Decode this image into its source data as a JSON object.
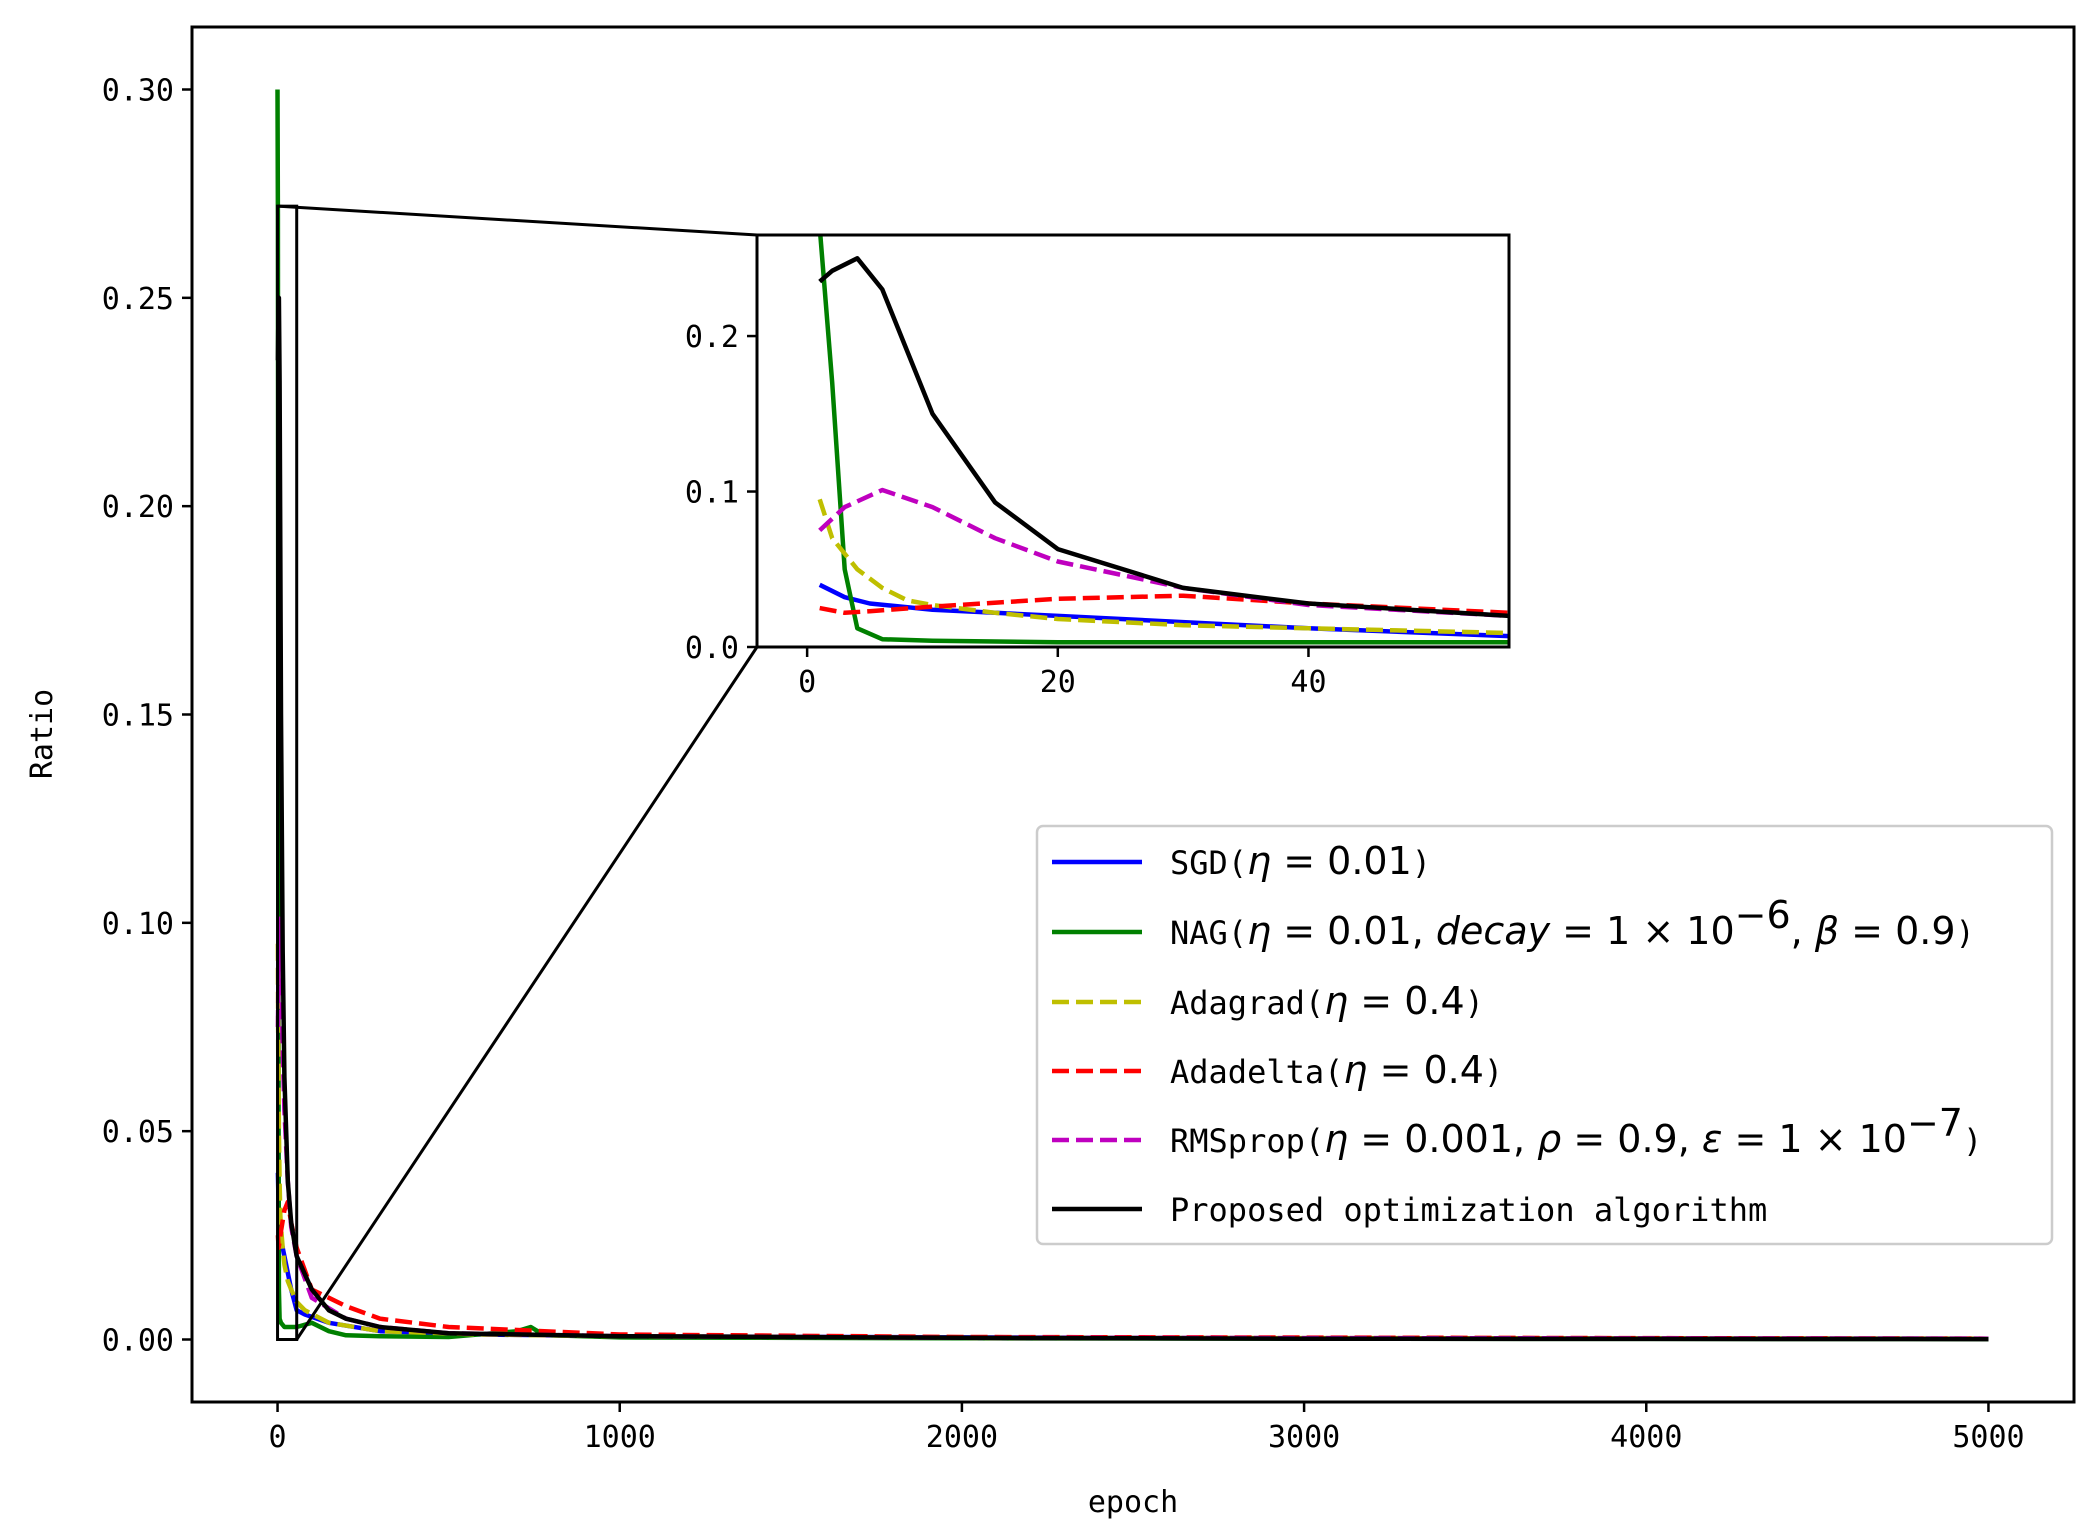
{
  "chart_data": {
    "type": "line",
    "title": "",
    "xlabel": "epoch",
    "ylabel": "Ratio",
    "xlim": [
      -250,
      5250
    ],
    "ylim": [
      -0.015,
      0.315
    ],
    "xticks": [
      0,
      1000,
      2000,
      3000,
      4000,
      5000
    ],
    "xtick_labels": [
      "0",
      "1000",
      "2000",
      "3000",
      "4000",
      "5000"
    ],
    "yticks": [
      0.0,
      0.05,
      0.1,
      0.15,
      0.2,
      0.25,
      0.3
    ],
    "ytick_labels": [
      "0.00",
      "0.05",
      "0.10",
      "0.15",
      "0.20",
      "0.25",
      "0.30"
    ],
    "grid": false,
    "legend_position": "center-right",
    "series": [
      {
        "name": "SGD(η = 0.01)",
        "color": "#0000ff",
        "style": "solid",
        "x": [
          1,
          3,
          5,
          10,
          15,
          20,
          30,
          40,
          56,
          80,
          150,
          300,
          600,
          1000,
          2000,
          3000,
          5000
        ],
        "y": [
          0.04,
          0.032,
          0.028,
          0.024,
          0.022,
          0.02,
          0.016,
          0.012,
          0.007,
          0.006,
          0.004,
          0.002,
          0.0012,
          0.0008,
          0.0005,
          0.0003,
          0.0002
        ]
      },
      {
        "name": "NAG(η = 0.01,  decay = 1 × 10⁻⁶,  β = 0.9)",
        "color": "#008000",
        "style": "solid",
        "x": [
          0,
          1,
          2,
          3,
          4,
          6,
          10,
          20,
          56,
          100,
          150,
          200,
          300,
          500,
          700,
          740,
          760,
          800,
          1000,
          2000,
          3000,
          5000
        ],
        "y": [
          0.3,
          0.27,
          0.17,
          0.05,
          0.012,
          0.005,
          0.004,
          0.003,
          0.003,
          0.004,
          0.002,
          0.001,
          0.0008,
          0.0006,
          0.002,
          0.003,
          0.002,
          0.001,
          0.0005,
          0.0003,
          0.0002,
          0.0001
        ]
      },
      {
        "name": "Adagrad(η = 0.4)",
        "color": "#bfbf00",
        "style": "dashed",
        "x": [
          1,
          2,
          4,
          6,
          8,
          10,
          15,
          20,
          30,
          40,
          56,
          80,
          150,
          300,
          600,
          1000,
          2000,
          5000
        ],
        "y": [
          0.095,
          0.07,
          0.05,
          0.038,
          0.03,
          0.027,
          0.022,
          0.018,
          0.014,
          0.012,
          0.009,
          0.007,
          0.004,
          0.002,
          0.0012,
          0.0008,
          0.0004,
          0.0002
        ]
      },
      {
        "name": "Adadelta(η = 0.4)",
        "color": "#ff0000",
        "style": "dashed",
        "x": [
          1,
          3,
          5,
          10,
          20,
          30,
          40,
          56,
          100,
          150,
          200,
          300,
          500,
          1000,
          2000,
          5000
        ],
        "y": [
          0.025,
          0.022,
          0.023,
          0.026,
          0.031,
          0.033,
          0.028,
          0.022,
          0.012,
          0.01,
          0.008,
          0.005,
          0.003,
          0.0012,
          0.0006,
          0.0002
        ]
      },
      {
        "name": "RMSprop(η = 0.001, ρ = 0.9, ε = 1 × 10⁻⁷)",
        "color": "#bf00bf",
        "style": "dashed",
        "x": [
          1,
          3,
          6,
          10,
          15,
          20,
          30,
          40,
          56,
          100,
          200,
          300,
          500,
          1000,
          2000,
          5000
        ],
        "y": [
          0.075,
          0.09,
          0.101,
          0.09,
          0.07,
          0.055,
          0.038,
          0.027,
          0.02,
          0.01,
          0.005,
          0.003,
          0.0015,
          0.0008,
          0.0004,
          0.0002
        ]
      },
      {
        "name": "Proposed optimization algorithm",
        "color": "#000000",
        "style": "solid",
        "x": [
          1,
          2,
          4,
          6,
          8,
          10,
          15,
          20,
          30,
          40,
          56,
          100,
          150,
          200,
          300,
          500,
          1000,
          2000,
          3000,
          5000
        ],
        "y": [
          0.235,
          0.242,
          0.25,
          0.23,
          0.19,
          0.15,
          0.093,
          0.063,
          0.038,
          0.028,
          0.02,
          0.012,
          0.007,
          0.005,
          0.003,
          0.0015,
          0.0008,
          0.0004,
          0.0002,
          0.0001
        ]
      }
    ],
    "inset": {
      "xlim": [
        -4,
        56
      ],
      "ylim": [
        0.0,
        0.265
      ],
      "xticks": [
        0,
        20,
        40
      ],
      "xtick_labels": [
        "0",
        "20",
        "40"
      ],
      "yticks": [
        0.0,
        0.1,
        0.2
      ],
      "ytick_labels": [
        "0.0",
        "0.1",
        "0.2"
      ],
      "zoom_region": {
        "x": [
          0,
          56
        ],
        "y": [
          0.0,
          0.272
        ]
      }
    }
  }
}
